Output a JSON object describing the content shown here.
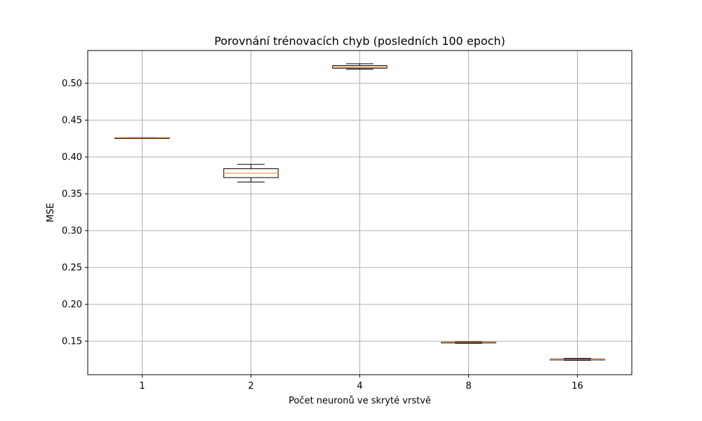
{
  "chart_data": {
    "type": "box",
    "title": "Porovnání trénovacích chyb (posledních 100 epoch)",
    "xlabel": "Počet neuronů ve skryté vrstvě",
    "ylabel": "MSE",
    "categories": [
      "1",
      "2",
      "4",
      "8",
      "16"
    ],
    "ylim": [
      0.1045,
      0.5445
    ],
    "yticks": [
      0.15,
      0.2,
      0.25,
      0.3,
      0.35,
      0.4,
      0.45,
      0.5
    ],
    "ytick_labels": [
      "0.15",
      "0.20",
      "0.25",
      "0.30",
      "0.35",
      "0.40",
      "0.45",
      "0.50"
    ],
    "grid": true,
    "boxes": [
      {
        "category": "1",
        "whisker_low": 0.4258,
        "q1": 0.4259,
        "median": 0.426,
        "q3": 0.4261,
        "whisker_high": 0.4262
      },
      {
        "category": "2",
        "whisker_low": 0.366,
        "q1": 0.372,
        "median": 0.378,
        "q3": 0.384,
        "whisker_high": 0.39
      },
      {
        "category": "4",
        "whisker_low": 0.519,
        "q1": 0.5205,
        "median": 0.522,
        "q3": 0.524,
        "whisker_high": 0.5265
      },
      {
        "category": "8",
        "whisker_low": 0.147,
        "q1": 0.1475,
        "median": 0.148,
        "q3": 0.1485,
        "whisker_high": 0.149
      },
      {
        "category": "16",
        "whisker_low": 0.124,
        "q1": 0.1245,
        "median": 0.125,
        "q3": 0.1255,
        "whisker_high": 0.1265
      }
    ],
    "colors": {
      "box": "#000000",
      "median": "#ff7f0e",
      "grid": "#b0b0b0"
    }
  }
}
